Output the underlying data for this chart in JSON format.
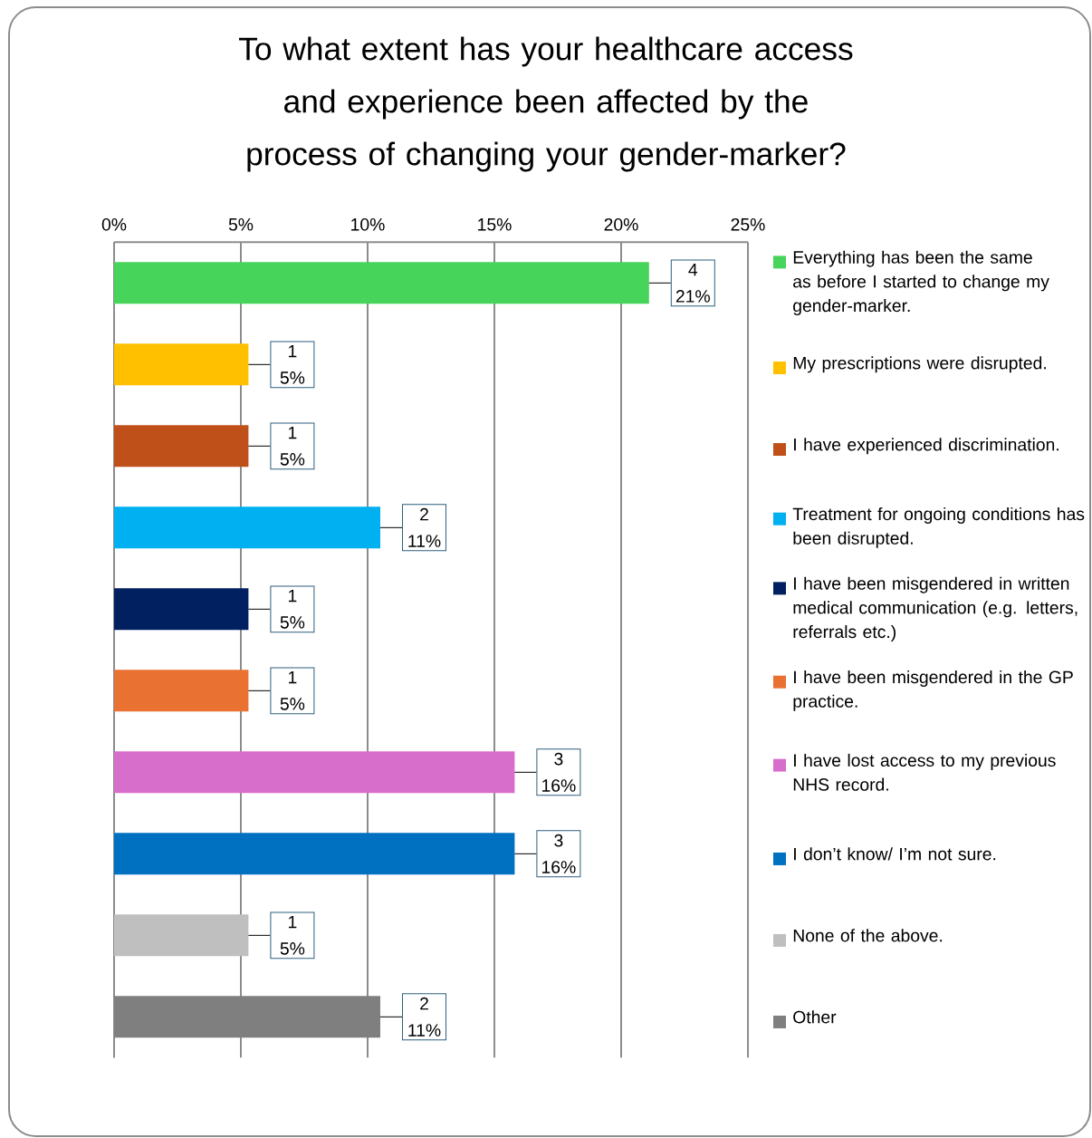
{
  "chart_data": {
    "type": "bar",
    "orientation": "horizontal",
    "title": "To what extent has your healthcare access and experience been affected by the process of changing your gender-marker?",
    "categories": [
      "Everything has been the same as before I started to change my gender-marker.",
      "My prescriptions were disrupted.",
      "I have experienced discrimination.",
      "Treatment for ongoing conditions has been disrupted.",
      "I have been misgendered in written medical communication (e.g. letters, referrals etc.)",
      "I have been misgendered in the GP practice.",
      "I have lost access to my previous NHS record.",
      "I don’t know/ I’m not sure.",
      "None of the above.",
      "Other"
    ],
    "values": [
      21.1,
      5.3,
      5.3,
      10.5,
      5.3,
      5.3,
      15.8,
      15.8,
      5.3,
      10.5
    ],
    "colors": [
      "#47D45A",
      "#FFC000",
      "#C0501A",
      "#00B0F0",
      "#002060",
      "#E97132",
      "#D86ECC",
      "#0070C0",
      "#BFBFBF",
      "#7F7F7F"
    ],
    "value_labels": [
      "4 21%",
      "1 5%",
      "1 5%",
      "2 11%",
      "1 5%",
      "1 5%",
      "3 16%",
      "3 16%",
      "1 5%",
      "2 11%"
    ],
    "xlim": [
      0,
      25
    ],
    "xticks": [
      {
        "value": 0,
        "label": "0%"
      },
      {
        "value": 5,
        "label": "5%"
      },
      {
        "value": 10,
        "label": "10%"
      },
      {
        "value": 15,
        "label": "15%"
      },
      {
        "value": 20,
        "label": "20%"
      },
      {
        "value": 25,
        "label": "25%"
      }
    ],
    "grid": "x"
  }
}
